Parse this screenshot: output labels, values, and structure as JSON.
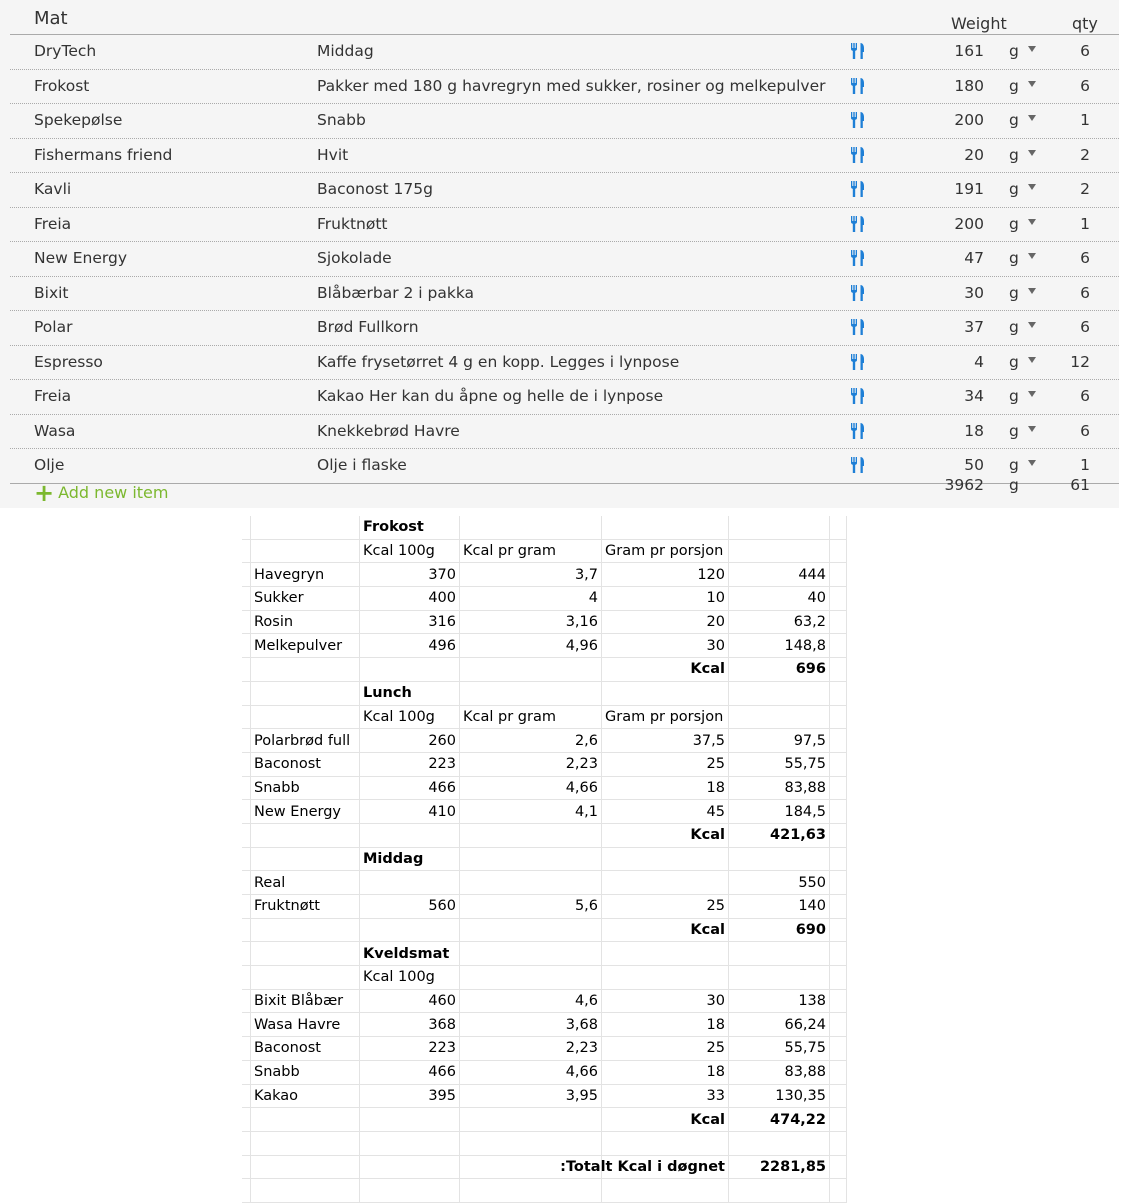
{
  "panel": {
    "title": "Mat",
    "weight_header": "Weight",
    "qty_header": "qty",
    "icon": "fork-knife-icon",
    "icon_color": "#1e7fd6",
    "accent": "#7cb82f",
    "items": [
      {
        "name": "DryTech",
        "desc": "Middag",
        "weight": "161",
        "unit": "g",
        "qty": "6"
      },
      {
        "name": "Frokost",
        "desc": "Pakker med 180 g havregryn med sukker, rosiner og melkepulver",
        "weight": "180",
        "unit": "g",
        "qty": "6"
      },
      {
        "name": "Spekepølse",
        "desc": "Snabb",
        "weight": "200",
        "unit": "g",
        "qty": "1"
      },
      {
        "name": "Fishermans friend",
        "desc": "Hvit",
        "weight": "20",
        "unit": "g",
        "qty": "2"
      },
      {
        "name": "Kavli",
        "desc": "Baconost 175g",
        "weight": "191",
        "unit": "g",
        "qty": "2"
      },
      {
        "name": "Freia",
        "desc": "Fruktnøtt",
        "weight": "200",
        "unit": "g",
        "qty": "1"
      },
      {
        "name": "New Energy",
        "desc": "Sjokolade",
        "weight": "47",
        "unit": "g",
        "qty": "6"
      },
      {
        "name": "Bixit",
        "desc": "Blåbærbar 2 i pakka",
        "weight": "30",
        "unit": "g",
        "qty": "6"
      },
      {
        "name": "Polar",
        "desc": "Brød Fullkorn",
        "weight": "37",
        "unit": "g",
        "qty": "6"
      },
      {
        "name": "Espresso",
        "desc": "Kaffe frysetørret 4 g en kopp. Legges i lynpose",
        "weight": "4",
        "unit": "g",
        "qty": "12"
      },
      {
        "name": "Freia",
        "desc": "Kakao Her kan du åpne og helle de i lynpose",
        "weight": "34",
        "unit": "g",
        "qty": "6"
      },
      {
        "name": "Wasa",
        "desc": "Knekkebrød Havre",
        "weight": "18",
        "unit": "g",
        "qty": "6"
      },
      {
        "name": "Olje",
        "desc": "Olje i flaske",
        "weight": "50",
        "unit": "g",
        "qty": "1"
      }
    ],
    "add_label": "Add new item",
    "total_weight": "3962",
    "total_unit": "g",
    "total_qty": "61"
  },
  "sheet": {
    "rows": [
      {
        "t": "h",
        "c": [
          "",
          "Frokost",
          "",
          "",
          ""
        ]
      },
      {
        "t": "l",
        "c": [
          "",
          "Kcal 100g",
          "Kcal pr gram",
          "Gram pr porsjon",
          ""
        ]
      },
      {
        "t": "i",
        "c": [
          "Havegryn",
          "370",
          "3,7",
          "120",
          "444"
        ]
      },
      {
        "t": "i",
        "c": [
          "Sukker",
          "400",
          "4",
          "10",
          "40"
        ]
      },
      {
        "t": "i",
        "c": [
          "Rosin",
          "316",
          "3,16",
          "20",
          "63,2"
        ]
      },
      {
        "t": "i",
        "c": [
          "Melkepulver",
          "496",
          "4,96",
          "30",
          "148,8"
        ]
      },
      {
        "t": "s",
        "c": [
          "",
          "",
          "",
          "Kcal",
          "696"
        ]
      },
      {
        "t": "h",
        "c": [
          "",
          "Lunch",
          "",
          "",
          ""
        ]
      },
      {
        "t": "l",
        "c": [
          "",
          "Kcal 100g",
          "Kcal pr gram",
          "Gram pr porsjon",
          ""
        ]
      },
      {
        "t": "i",
        "c": [
          "Polarbrød full",
          "260",
          "2,6",
          "37,5",
          "97,5"
        ]
      },
      {
        "t": "i",
        "c": [
          "Baconost",
          "223",
          "2,23",
          "25",
          "55,75"
        ]
      },
      {
        "t": "i",
        "c": [
          "Snabb",
          "466",
          "4,66",
          "18",
          "83,88"
        ]
      },
      {
        "t": "i",
        "c": [
          "New Energy",
          "410",
          "4,1",
          "45",
          "184,5"
        ]
      },
      {
        "t": "s",
        "c": [
          "",
          "",
          "",
          "Kcal",
          "421,63"
        ]
      },
      {
        "t": "h",
        "c": [
          "",
          "Middag",
          "",
          "",
          ""
        ]
      },
      {
        "t": "i",
        "c": [
          "Real",
          "",
          "",
          "",
          "550"
        ]
      },
      {
        "t": "i",
        "c": [
          "Fruktnøtt",
          "560",
          "5,6",
          "25",
          "140"
        ]
      },
      {
        "t": "s",
        "c": [
          "",
          "",
          "",
          "Kcal",
          "690"
        ]
      },
      {
        "t": "h",
        "c": [
          "",
          "Kveldsmat",
          "",
          "",
          ""
        ]
      },
      {
        "t": "l",
        "c": [
          "",
          "Kcal 100g",
          "",
          "",
          ""
        ]
      },
      {
        "t": "i",
        "c": [
          "Bixit Blåbær",
          "460",
          "4,6",
          "30",
          "138"
        ]
      },
      {
        "t": "i",
        "c": [
          "Wasa Havre",
          "368",
          "3,68",
          "18",
          "66,24"
        ]
      },
      {
        "t": "i",
        "c": [
          "Baconost",
          "223",
          "2,23",
          "25",
          "55,75"
        ]
      },
      {
        "t": "i",
        "c": [
          "Snabb",
          "466",
          "4,66",
          "18",
          "83,88"
        ]
      },
      {
        "t": "i",
        "c": [
          "Kakao",
          "395",
          "3,95",
          "33",
          "130,35"
        ]
      },
      {
        "t": "s",
        "c": [
          "",
          "",
          "",
          "Kcal",
          "474,22"
        ]
      },
      {
        "t": "e",
        "c": [
          "",
          "",
          "",
          "",
          ""
        ]
      },
      {
        "t": "s",
        "c": [
          "",
          "",
          "",
          "Totalt Kcal i døgnet:",
          "2281,85"
        ]
      },
      {
        "t": "e",
        "c": [
          "",
          "",
          "",
          "",
          ""
        ]
      }
    ]
  }
}
